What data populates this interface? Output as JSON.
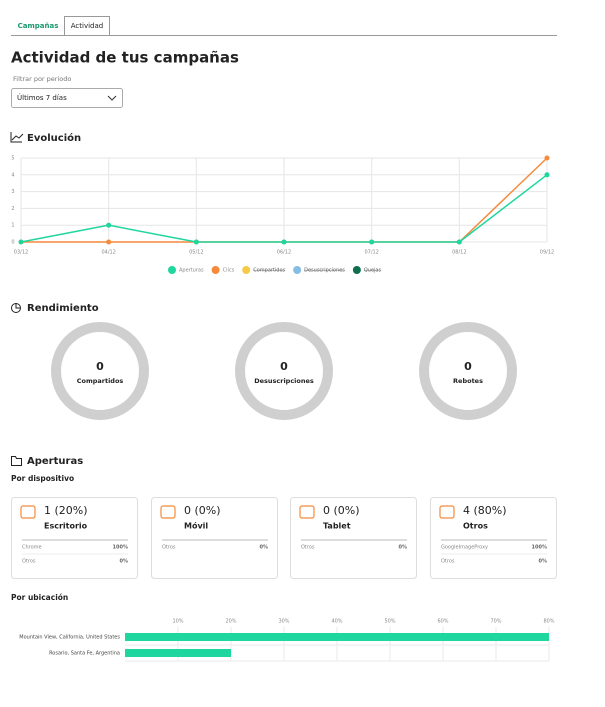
{
  "tabs": [
    "Campañas",
    "Actividad"
  ],
  "title": "Actividad de tus campañas",
  "filter": {
    "label": "Filtrar por periodo",
    "value": "Últimos 7 días"
  },
  "evolucion": {
    "title": "Evolución",
    "chart_data": {
      "type": "line",
      "categories": [
        "03/12",
        "04/12",
        "05/12",
        "06/12",
        "07/12",
        "08/12",
        "09/12"
      ],
      "ylim": [
        0,
        5
      ],
      "yticks": [
        0,
        1,
        2,
        3,
        4,
        5
      ],
      "grid": true,
      "series": [
        {
          "name": "Aperturas",
          "color": "#1ed69e",
          "values": [
            0,
            1,
            0,
            0,
            0,
            0,
            4
          ]
        },
        {
          "name": "Clics",
          "color": "#f58a3c",
          "values": [
            0,
            0,
            0,
            0,
            0,
            0,
            5
          ]
        },
        {
          "name": "Compartidos",
          "color": "#f7c948",
          "hidden": true
        },
        {
          "name": "Desuscripciones",
          "color": "#86bde3",
          "hidden": true
        },
        {
          "name": "Quejas",
          "color": "#0d6e50",
          "hidden": true
        }
      ]
    }
  },
  "rendimiento": {
    "title": "Rendimiento",
    "items": [
      {
        "value": 0,
        "label": "Compartidos"
      },
      {
        "value": 0,
        "label": "Desuscripciones"
      },
      {
        "value": 0,
        "label": "Rebotes"
      }
    ]
  },
  "aperturas": {
    "title": "Aperturas",
    "device_title": "Por dispositivo",
    "cards": [
      {
        "value": "1 (20%)",
        "label": "Escritorio",
        "rows": [
          [
            "Chrome",
            "100%"
          ],
          [
            "Otros",
            "0%"
          ]
        ]
      },
      {
        "value": "0 (0%)",
        "label": "Móvil",
        "rows": [
          [
            "Otros",
            "0%"
          ]
        ]
      },
      {
        "value": "0 (0%)",
        "label": "Tablet",
        "rows": [
          [
            "Otros",
            "0%"
          ]
        ]
      },
      {
        "value": "4 (80%)",
        "label": "Otros",
        "rows": [
          [
            "GoogleImageProxy",
            "100%"
          ],
          [
            "Otros",
            "0%"
          ]
        ]
      }
    ],
    "location_title": "Por ubicación",
    "chart_data": {
      "type": "hbar",
      "categories": [
        "Mountain View, California, United States",
        "Rosario, Santa Fe, Argentina"
      ],
      "values": [
        80,
        20
      ],
      "color": "#1ed69e",
      "xlim": [
        0,
        80
      ],
      "xticks": [
        {
          "value": 10,
          "label": "10%"
        },
        {
          "value": 20,
          "label": "20%"
        },
        {
          "value": 30,
          "label": "30%"
        },
        {
          "value": 40,
          "label": "40%"
        },
        {
          "value": 50,
          "label": "50%"
        },
        {
          "value": 60,
          "label": "60%"
        },
        {
          "value": 70,
          "label": "70%"
        },
        {
          "value": 80,
          "label": "80%"
        }
      ],
      "grid": true
    }
  }
}
